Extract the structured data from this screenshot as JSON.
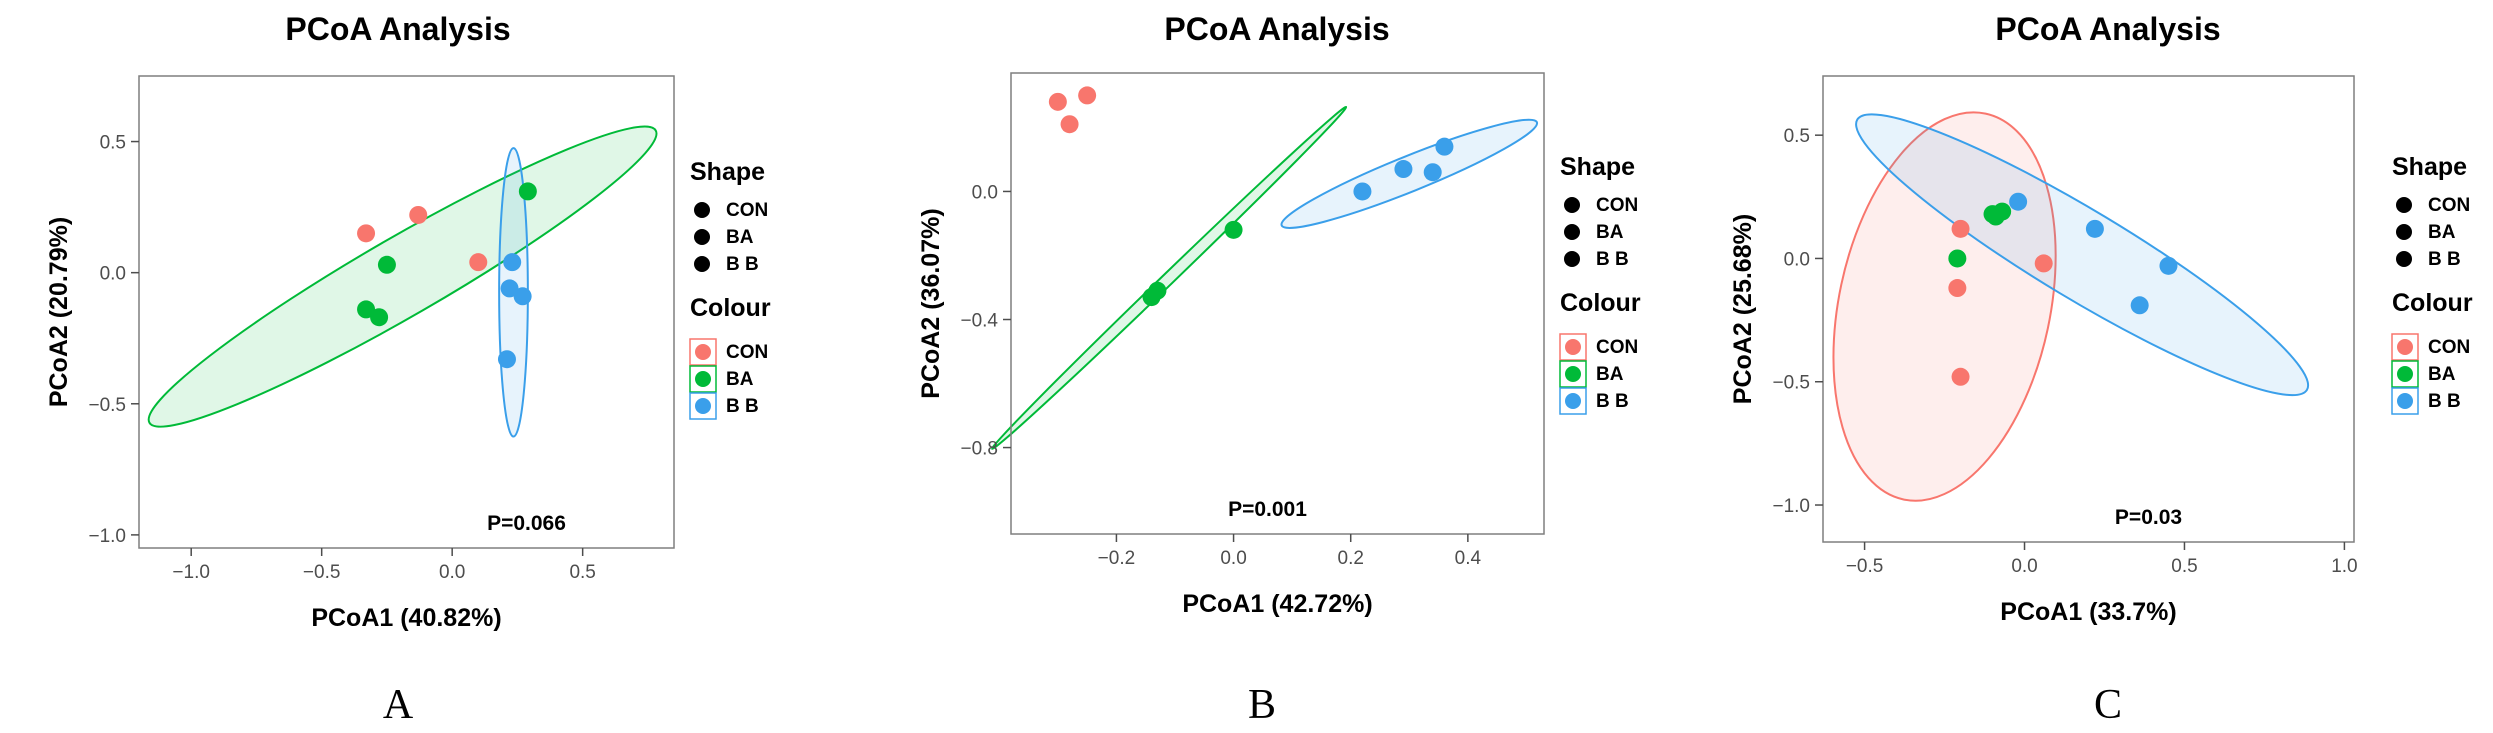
{
  "chart_data": [
    {
      "type": "scatter",
      "panel_label": "A",
      "title": "PCoA Analysis",
      "xlabel": "PCoA1 (40.82%)",
      "ylabel": "PCoA2 (20.79%)",
      "xlim": [
        -1.2,
        0.85
      ],
      "ylim": [
        -1.05,
        0.75
      ],
      "xticks": [
        -1.0,
        -0.5,
        0.0,
        0.5
      ],
      "xtick_labels": [
        "−1.0",
        "−0.5",
        "0.0",
        "0.5"
      ],
      "yticks": [
        -1.0,
        -0.5,
        0.0,
        0.5
      ],
      "ytick_labels": [
        "−1.0",
        "−0.5",
        "0.0",
        "0.5"
      ],
      "p_value": "P=0.066",
      "grid": false,
      "series": [
        {
          "name": "CON",
          "color": "#F8766D",
          "points": [
            [
              -0.33,
              0.15
            ],
            [
              -0.13,
              0.22
            ],
            [
              0.1,
              0.04
            ]
          ]
        },
        {
          "name": "BA",
          "color": "#00BA38",
          "points": [
            [
              -0.25,
              0.03
            ],
            [
              -0.33,
              -0.14
            ],
            [
              -0.28,
              -0.17
            ],
            [
              0.29,
              0.31
            ]
          ]
        },
        {
          "name": "B B",
          "color": "#3A9FEA",
          "points": [
            [
              0.23,
              0.04
            ],
            [
              0.22,
              -0.06
            ],
            [
              0.27,
              -0.09
            ],
            [
              0.21,
              -0.33
            ]
          ]
        }
      ],
      "ellipses": [
        {
          "group": "BA",
          "color": "#00BA38",
          "cx": -0.19,
          "cy": -0.015,
          "rx": 1.12,
          "ry": 0.15,
          "angle_deg": -30
        },
        {
          "group": "B B",
          "color": "#3A9FEA",
          "cx": 0.235,
          "cy": -0.075,
          "rx": 0.055,
          "ry": 0.55,
          "angle_deg": 0
        }
      ]
    },
    {
      "type": "scatter",
      "panel_label": "B",
      "title": "PCoA Analysis",
      "xlabel": "PCoA1 (42.72%)",
      "ylabel": "PCoA2 (36.07%)",
      "xlim": [
        -0.38,
        0.53
      ],
      "ylim": [
        -1.07,
        0.37
      ],
      "xticks": [
        -0.2,
        0.0,
        0.2,
        0.4
      ],
      "xtick_labels": [
        "−0.2",
        "0.0",
        "0.2",
        "0.4"
      ],
      "yticks": [
        -0.8,
        -0.4,
        0.0
      ],
      "ytick_labels": [
        "−0.8",
        "−0.4",
        "0.0"
      ],
      "p_value": "P=0.001",
      "grid": false,
      "series": [
        {
          "name": "CON",
          "color": "#F8766D",
          "points": [
            [
              -0.3,
              0.28
            ],
            [
              -0.28,
              0.21
            ],
            [
              -0.25,
              0.3
            ]
          ]
        },
        {
          "name": "BA",
          "color": "#00BA38",
          "points": [
            [
              0.0,
              -0.12
            ],
            [
              -0.13,
              -0.31
            ],
            [
              -0.14,
              -0.33
            ]
          ]
        },
        {
          "name": "B B",
          "color": "#3A9FEA",
          "points": [
            [
              0.22,
              0.0
            ],
            [
              0.29,
              0.07
            ],
            [
              0.34,
              0.06
            ],
            [
              0.36,
              0.14
            ]
          ]
        }
      ],
      "ellipses": [
        {
          "group": "BA",
          "color": "#00BA38",
          "cx": -0.11,
          "cy": -0.27,
          "rx": 0.42,
          "ry": 0.018,
          "angle_deg": -44
        },
        {
          "group": "B B",
          "color": "#3A9FEA",
          "cx": 0.3,
          "cy": 0.055,
          "rx": 0.235,
          "ry": 0.055,
          "angle_deg": -22
        }
      ]
    },
    {
      "type": "scatter",
      "panel_label": "C",
      "title": "PCoA Analysis",
      "xlabel": "PCoA1 (33.7%)",
      "ylabel": "PCoA2 (25.68%)",
      "xlim": [
        -0.63,
        1.03
      ],
      "ylim": [
        -1.15,
        0.74
      ],
      "xticks": [
        -0.5,
        0.0,
        0.5,
        1.0
      ],
      "xtick_labels": [
        "−0.5",
        "0.0",
        "0.5",
        "1.0"
      ],
      "yticks": [
        -1.0,
        -0.5,
        0.0,
        0.5
      ],
      "ytick_labels": [
        "−1.0",
        "−0.5",
        "0.0",
        "0.5"
      ],
      "p_value": "P=0.03",
      "grid": false,
      "series": [
        {
          "name": "CON",
          "color": "#F8766D",
          "points": [
            [
              -0.2,
              0.12
            ],
            [
              0.06,
              -0.02
            ],
            [
              -0.21,
              -0.12
            ],
            [
              -0.2,
              -0.48
            ]
          ]
        },
        {
          "name": "BA",
          "color": "#00BA38",
          "points": [
            [
              -0.1,
              0.18
            ],
            [
              -0.09,
              0.17
            ],
            [
              -0.07,
              0.19
            ],
            [
              -0.21,
              0.0
            ]
          ]
        },
        {
          "name": "B B",
          "color": "#3A9FEA",
          "points": [
            [
              -0.02,
              0.23
            ],
            [
              0.22,
              0.12
            ],
            [
              0.45,
              -0.03
            ],
            [
              0.36,
              -0.19
            ]
          ]
        }
      ],
      "ellipses": [
        {
          "group": "CON",
          "color": "#F8766D",
          "cx": -0.25,
          "cy": -0.195,
          "rx": 0.33,
          "ry": 0.8,
          "angle_deg": 12
        },
        {
          "group": "B B",
          "color": "#3A9FEA",
          "cx": 0.18,
          "cy": 0.015,
          "rx": 0.82,
          "ry": 0.18,
          "angle_deg": 31
        }
      ]
    }
  ],
  "legend": {
    "shape_title": "Shape",
    "colour_title": "Colour",
    "entries": [
      {
        "label": "CON",
        "color": "#F8766D"
      },
      {
        "label": "BA",
        "color": "#00BA38"
      },
      {
        "label": "B B",
        "color": "#3A9FEA"
      }
    ]
  }
}
